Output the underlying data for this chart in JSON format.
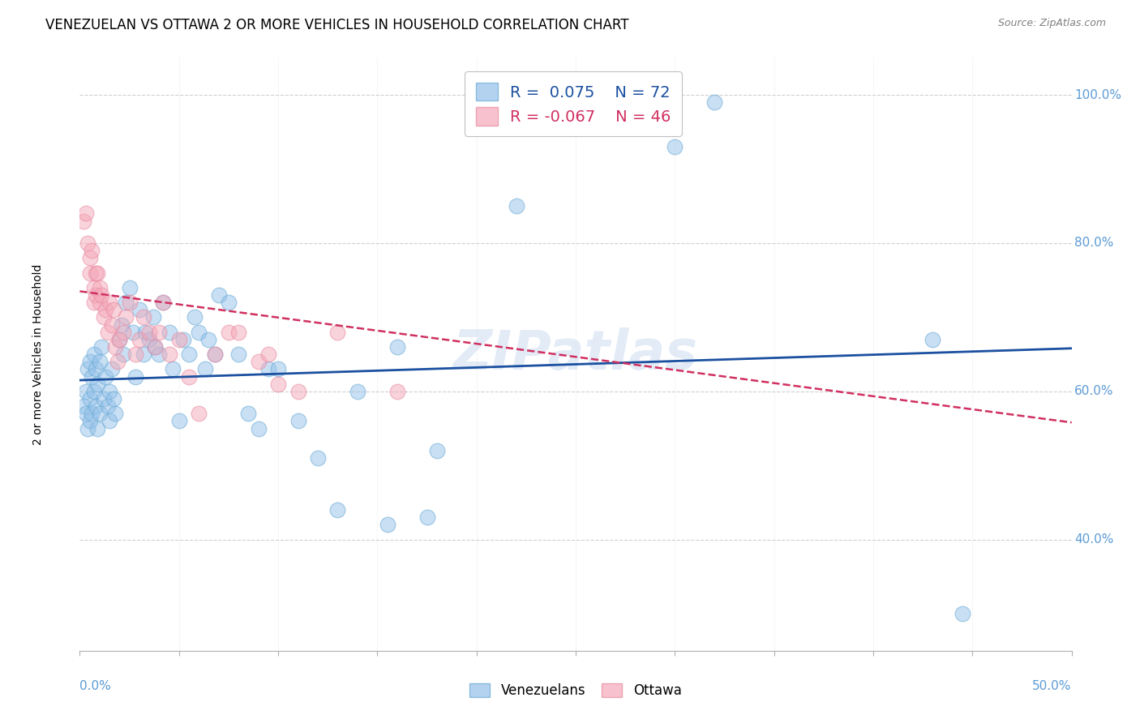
{
  "title": "VENEZUELAN VS OTTAWA 2 OR MORE VEHICLES IN HOUSEHOLD CORRELATION CHART",
  "source": "Source: ZipAtlas.com",
  "ylabel": "2 or more Vehicles in Household",
  "xlim": [
    0.0,
    0.5
  ],
  "ylim": [
    0.25,
    1.05
  ],
  "blue_scatter_x": [
    0.002,
    0.003,
    0.003,
    0.004,
    0.004,
    0.005,
    0.005,
    0.005,
    0.006,
    0.006,
    0.007,
    0.007,
    0.008,
    0.008,
    0.009,
    0.009,
    0.01,
    0.01,
    0.011,
    0.012,
    0.013,
    0.014,
    0.015,
    0.015,
    0.016,
    0.017,
    0.018,
    0.02,
    0.021,
    0.022,
    0.023,
    0.025,
    0.027,
    0.028,
    0.03,
    0.032,
    0.033,
    0.035,
    0.037,
    0.038,
    0.04,
    0.042,
    0.045,
    0.047,
    0.05,
    0.052,
    0.055,
    0.058,
    0.06,
    0.063,
    0.065,
    0.068,
    0.07,
    0.075,
    0.08,
    0.085,
    0.09,
    0.095,
    0.1,
    0.11,
    0.12,
    0.13,
    0.14,
    0.155,
    0.16,
    0.175,
    0.18,
    0.22,
    0.3,
    0.32,
    0.43,
    0.445
  ],
  "blue_scatter_y": [
    0.58,
    0.6,
    0.57,
    0.63,
    0.55,
    0.59,
    0.64,
    0.56,
    0.62,
    0.57,
    0.6,
    0.65,
    0.58,
    0.63,
    0.55,
    0.61,
    0.57,
    0.64,
    0.66,
    0.59,
    0.62,
    0.58,
    0.6,
    0.56,
    0.63,
    0.59,
    0.57,
    0.67,
    0.69,
    0.65,
    0.72,
    0.74,
    0.68,
    0.62,
    0.71,
    0.65,
    0.68,
    0.67,
    0.7,
    0.66,
    0.65,
    0.72,
    0.68,
    0.63,
    0.56,
    0.67,
    0.65,
    0.7,
    0.68,
    0.63,
    0.67,
    0.65,
    0.73,
    0.72,
    0.65,
    0.57,
    0.55,
    0.63,
    0.63,
    0.56,
    0.51,
    0.44,
    0.6,
    0.42,
    0.66,
    0.43,
    0.52,
    0.85,
    0.93,
    0.99,
    0.67,
    0.3
  ],
  "pink_scatter_x": [
    0.002,
    0.003,
    0.004,
    0.005,
    0.005,
    0.006,
    0.007,
    0.007,
    0.008,
    0.008,
    0.009,
    0.01,
    0.01,
    0.011,
    0.012,
    0.013,
    0.014,
    0.015,
    0.016,
    0.017,
    0.018,
    0.019,
    0.02,
    0.022,
    0.023,
    0.025,
    0.028,
    0.03,
    0.032,
    0.035,
    0.038,
    0.04,
    0.042,
    0.045,
    0.05,
    0.055,
    0.06,
    0.068,
    0.075,
    0.08,
    0.09,
    0.095,
    0.1,
    0.11,
    0.13,
    0.16
  ],
  "pink_scatter_y": [
    0.83,
    0.84,
    0.8,
    0.78,
    0.76,
    0.79,
    0.74,
    0.72,
    0.76,
    0.73,
    0.76,
    0.74,
    0.72,
    0.73,
    0.7,
    0.71,
    0.68,
    0.72,
    0.69,
    0.71,
    0.66,
    0.64,
    0.67,
    0.68,
    0.7,
    0.72,
    0.65,
    0.67,
    0.7,
    0.68,
    0.66,
    0.68,
    0.72,
    0.65,
    0.67,
    0.62,
    0.57,
    0.65,
    0.68,
    0.68,
    0.64,
    0.65,
    0.61,
    0.6,
    0.68,
    0.6
  ],
  "blue_line_x": [
    0.0,
    0.5
  ],
  "blue_line_y": [
    0.615,
    0.658
  ],
  "pink_line_x": [
    0.0,
    0.5
  ],
  "pink_line_y": [
    0.735,
    0.558
  ],
  "blue_color": "#92C0EA",
  "pink_color": "#F4A8B8",
  "blue_edge_color": "#6AAAD4",
  "pink_edge_color": "#E888A0",
  "blue_line_color": "#1B50A0",
  "pink_line_color": "#D03060",
  "watermark": "ZIPatlas",
  "watermark_color": "#C8D8F0",
  "grid_color": "#D0D0D0",
  "tick_color": "#5B9BD5",
  "bg_color": "#FFFFFF",
  "title_fontsize": 12,
  "axis_label_fontsize": 10,
  "tick_fontsize": 11,
  "marker_size": 180
}
